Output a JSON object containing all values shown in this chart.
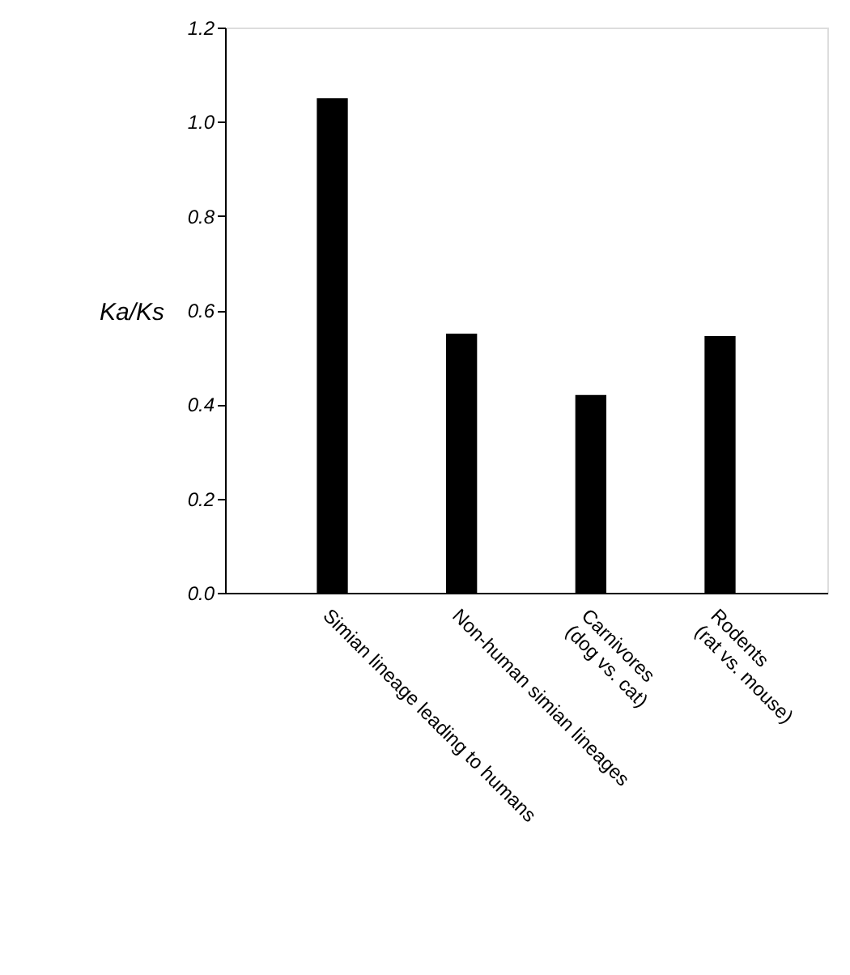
{
  "chart_data": {
    "type": "bar",
    "ylabel": "Ka/Ks",
    "categories": [
      "Simian lineage leading to humans",
      "Non-human simian lineages",
      "Carnivores\n(dog vs. cat)",
      "Rodents\n(rat vs. mouse)"
    ],
    "values": [
      1.05,
      0.55,
      0.42,
      0.545
    ],
    "color": "#000000",
    "ylim": [
      0,
      1.2
    ],
    "yticks": [
      {
        "value": 0,
        "label": "0.0"
      },
      0.2,
      0.4,
      0.6,
      0.8,
      {
        "value": 1,
        "label": "1.0"
      },
      1.2
    ],
    "grid": false
  }
}
